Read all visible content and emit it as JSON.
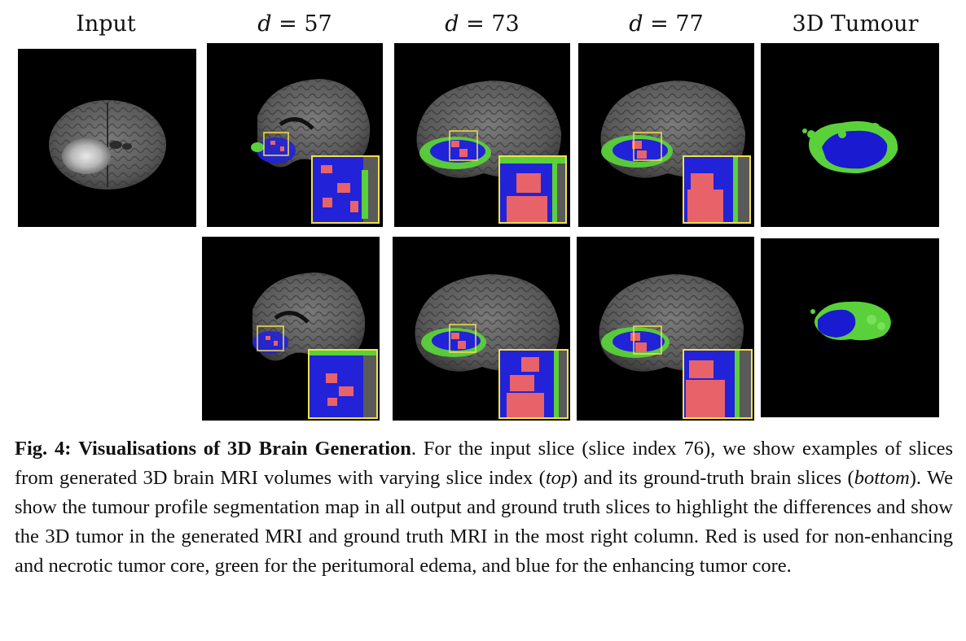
{
  "figure": {
    "columns": [
      {
        "label": "Input"
      },
      {
        "label_prefix": "d",
        "label_eq": " = ",
        "label_value": "57"
      },
      {
        "label_prefix": "d",
        "label_eq": " = ",
        "label_value": "73"
      },
      {
        "label_prefix": "d",
        "label_eq": " = ",
        "label_value": "77"
      },
      {
        "label": "3D Tumour"
      }
    ],
    "rows": [
      "generated",
      "ground-truth"
    ],
    "colors": {
      "background": "#000000",
      "inset_border": "#f2e04a",
      "necrotic_core": "#e8626a",
      "edema": "#5ad13a",
      "enhancing_core": "#2222d8"
    }
  },
  "caption": {
    "fig_label": "Fig. 4:",
    "title": "Visualisations of 3D Brain Generation",
    "p1": ". For the input slice (slice index 76), we show examples of slices from generated 3D brain MRI volumes with varying slice index (",
    "top": "top",
    "p2": ") and its ground-truth brain slices (",
    "bottom": "bottom",
    "p3": "). We show the tumour profile segmentation map in all output and ground truth slices to highlight the differences and show the 3D tumor in the generated MRI and ground truth MRI in the most right column. Red is used for non-enhancing and necrotic tumor core, green for the peritumoral edema, and blue for the enhancing tumor core."
  }
}
